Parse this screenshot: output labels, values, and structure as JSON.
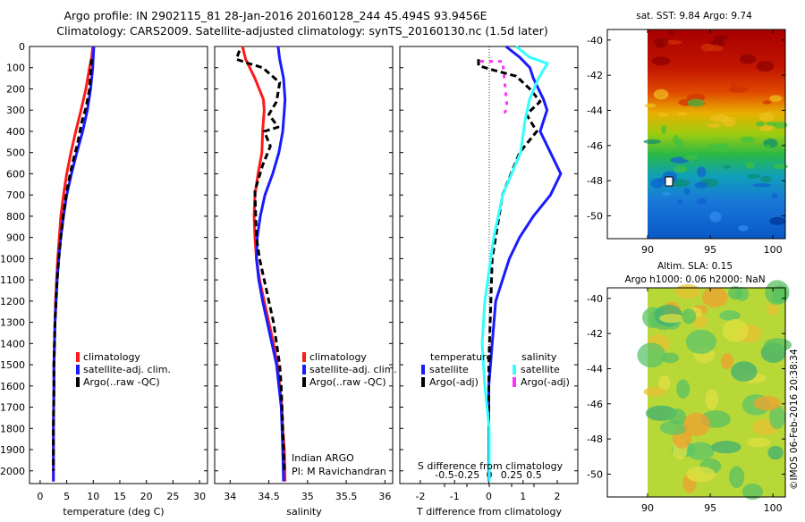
{
  "header": {
    "line1": "Argo profile: IN 2902115_81 28-Jan-2016 20160128_244 45.494S 93.9456E",
    "line2": "Climatology: CARS2009. Satellite-adjusted climatology: synTS_20160130.nc (1.5d later)"
  },
  "colors": {
    "climatology": "#ff1a1a",
    "satellite": "#1a1aff",
    "argo": "#000000",
    "s_satellite": "#33ffff",
    "s_argo": "#ff33ff"
  },
  "depth_ticks": [
    "0",
    "100",
    "200",
    "300",
    "400",
    "500",
    "600",
    "700",
    "800",
    "900",
    "1000",
    "1100",
    "1200",
    "1300",
    "1400",
    "1500",
    "1600",
    "1700",
    "1800",
    "1900",
    "2000"
  ],
  "temp_panel": {
    "xlabel": "temperature (deg C)",
    "xticks": [
      "0",
      "5",
      "10",
      "15",
      "20",
      "25",
      "30"
    ],
    "legend": [
      "climatology",
      "satellite-adj. clim.",
      "Argo(..raw -QC)"
    ]
  },
  "sal_panel": {
    "xlabel": "salinity",
    "xticks": [
      "34",
      "34.5",
      "35",
      "35.5",
      "36"
    ],
    "legend": [
      "climatology",
      "satellite-adj. clim.",
      "Argo(..raw -QC)"
    ],
    "credit1": "Indian ARGO",
    "credit2": "PI: M Ravichandran"
  },
  "diff_panel": {
    "xlabel": "T difference from climatology",
    "xticks": [
      "-2",
      "-1",
      "0",
      "1",
      "2"
    ],
    "top_label": "S difference from climatology",
    "top_ticks": [
      "-0.5",
      "-0.25",
      "0",
      "0.25",
      "0.5"
    ],
    "legend_t_header": "temperature",
    "legend_s_header": "salinity",
    "legend_t": [
      "satellite",
      "Argo(-adj)"
    ],
    "legend_s": [
      "satellite",
      "Argo(-adj)"
    ]
  },
  "map_sst": {
    "title": "sat. SST: 9.84  Argo: 9.74",
    "yticks": [
      "-40",
      "-42",
      "-44",
      "-46",
      "-48",
      "-50"
    ],
    "xticks": [
      "90",
      "95",
      "100"
    ]
  },
  "map_sla": {
    "title1": "Altim. SLA: 0.15",
    "title2": "Argo h1000: 0.06 h2000: NaN",
    "yticks": [
      "-40",
      "-42",
      "-44",
      "-46",
      "-48",
      "-50"
    ],
    "xticks": [
      "90",
      "95",
      "100"
    ]
  },
  "stamp": "©IMOS 06-Feb-2016 20:38:34",
  "chart_data": [
    {
      "type": "line",
      "xlabel": "temperature (deg C)",
      "ylabel": "",
      "xlim": [
        -2,
        31.5
      ],
      "ylim": [
        2060,
        0
      ],
      "series": [
        {
          "name": "climatology",
          "x": [
            9.9,
            9.7,
            9.3,
            8.6,
            7.7,
            6.7,
            5.8,
            5.0,
            4.4,
            3.9,
            3.6,
            3.3,
            3.1,
            2.9,
            2.8,
            2.7,
            2.6,
            2.6,
            2.5,
            2.5,
            2.5
          ],
          "y": [
            0,
            50,
            100,
            200,
            300,
            400,
            500,
            600,
            700,
            800,
            900,
            1000,
            1100,
            1200,
            1300,
            1400,
            1500,
            1600,
            1800,
            2000,
            2050
          ]
        },
        {
          "name": "satellite-adj. clim.",
          "x": [
            10.1,
            10.0,
            9.9,
            9.5,
            8.9,
            8.0,
            6.9,
            5.9,
            5.0,
            4.4,
            3.9,
            3.5,
            3.2,
            3.0,
            2.8,
            2.7,
            2.6,
            2.6,
            2.5,
            2.5,
            2.5
          ],
          "y": [
            0,
            50,
            100,
            200,
            300,
            400,
            500,
            600,
            700,
            800,
            900,
            1000,
            1100,
            1200,
            1300,
            1400,
            1500,
            1600,
            1800,
            2000,
            2050
          ]
        },
        {
          "name": "Argo(..raw -QC)",
          "x": [
            9.7,
            9.6,
            9.5,
            9.3,
            8.6,
            7.8,
            7.1,
            6.0,
            5.0,
            4.4,
            3.9,
            3.5,
            3.2,
            3.0,
            2.8,
            2.7,
            2.6,
            2.6,
            2.5,
            2.5
          ],
          "y": [
            60,
            90,
            130,
            200,
            290,
            360,
            450,
            560,
            680,
            790,
            900,
            1000,
            1100,
            1200,
            1300,
            1400,
            1500,
            1600,
            1800,
            2000
          ]
        }
      ]
    },
    {
      "type": "line",
      "xlabel": "salinity",
      "ylabel": "",
      "xlim": [
        33.8,
        36.1
      ],
      "ylim": [
        2060,
        0
      ],
      "series": [
        {
          "name": "climatology",
          "x": [
            34.16,
            34.2,
            34.32,
            34.43,
            34.44,
            34.42,
            34.41,
            34.36,
            34.32,
            34.31,
            34.32,
            34.34,
            34.38,
            34.44,
            34.5,
            34.56,
            34.61,
            34.64,
            34.67,
            34.68,
            34.7,
            34.71
          ],
          "y": [
            0,
            60,
            150,
            250,
            300,
            400,
            500,
            600,
            700,
            800,
            900,
            1000,
            1100,
            1200,
            1300,
            1400,
            1500,
            1600,
            1700,
            1800,
            1900,
            2050
          ]
        },
        {
          "name": "satellite-adj. clim.",
          "x": [
            34.62,
            34.64,
            34.69,
            34.71,
            34.7,
            34.68,
            34.63,
            34.55,
            34.45,
            34.39,
            34.35,
            34.34,
            34.37,
            34.42,
            34.48,
            34.54,
            34.6,
            34.63,
            34.66,
            34.67,
            34.68,
            34.69
          ],
          "y": [
            0,
            60,
            150,
            250,
            300,
            400,
            500,
            600,
            700,
            800,
            900,
            1000,
            1100,
            1200,
            1300,
            1400,
            1500,
            1600,
            1700,
            1800,
            1900,
            2050
          ]
        },
        {
          "name": "Argo(..raw -QC)",
          "x": [
            34.12,
            34.08,
            34.24,
            34.42,
            34.64,
            34.6,
            34.5,
            34.62,
            34.44,
            34.52,
            34.42,
            34.32,
            34.33,
            34.34,
            34.38,
            34.44,
            34.5,
            34.56,
            34.6,
            34.64,
            34.66,
            34.68,
            34.7
          ],
          "y": [
            20,
            60,
            80,
            100,
            170,
            260,
            320,
            380,
            400,
            470,
            560,
            680,
            800,
            900,
            1000,
            1100,
            1200,
            1300,
            1400,
            1500,
            1600,
            1800,
            2000
          ]
        }
      ]
    },
    {
      "type": "line",
      "xlabel": "T difference from climatology",
      "ylabel": "",
      "xlim": [
        -2.6,
        2.6
      ],
      "ylim": [
        2060,
        0
      ],
      "series": [
        {
          "name": "temperature satellite",
          "x": [
            0.5,
            0.9,
            1.2,
            1.3,
            1.6,
            1.7,
            1.5,
            1.8,
            2.1,
            1.8,
            1.3,
            0.9,
            0.6,
            0.4,
            0.2,
            0.1,
            0,
            0,
            0
          ],
          "y": [
            0,
            50,
            100,
            150,
            250,
            300,
            400,
            500,
            600,
            700,
            800,
            900,
            1000,
            1100,
            1200,
            1400,
            1600,
            1800,
            2050
          ]
        },
        {
          "name": "temperature Argo(-adj)",
          "x": [
            -0.3,
            -0.3,
            0.1,
            0.8,
            1.2,
            1.5,
            1.1,
            1.4,
            0.9,
            0.4,
            0.1,
            0,
            0
          ],
          "y": [
            60,
            90,
            110,
            140,
            200,
            260,
            320,
            400,
            500,
            700,
            1000,
            1500,
            2000
          ]
        },
        {
          "name": "salinity satellite",
          "x": [
            0.3,
            0.45,
            0.65,
            0.55,
            0.45,
            0.4,
            0.35,
            0.25,
            0.15,
            0.05,
            -0.05,
            -0.08,
            -0.05,
            0,
            0,
            0
          ],
          "y": [
            0,
            50,
            80,
            150,
            250,
            350,
            500,
            600,
            700,
            900,
            1200,
            1400,
            1600,
            1800,
            1900,
            2050
          ]
        },
        {
          "name": "salinity Argo(-adj)",
          "x": [
            -0.1,
            0.15,
            0.2,
            0.15
          ],
          "y": [
            70,
            70,
            290,
            330
          ]
        }
      ]
    }
  ]
}
